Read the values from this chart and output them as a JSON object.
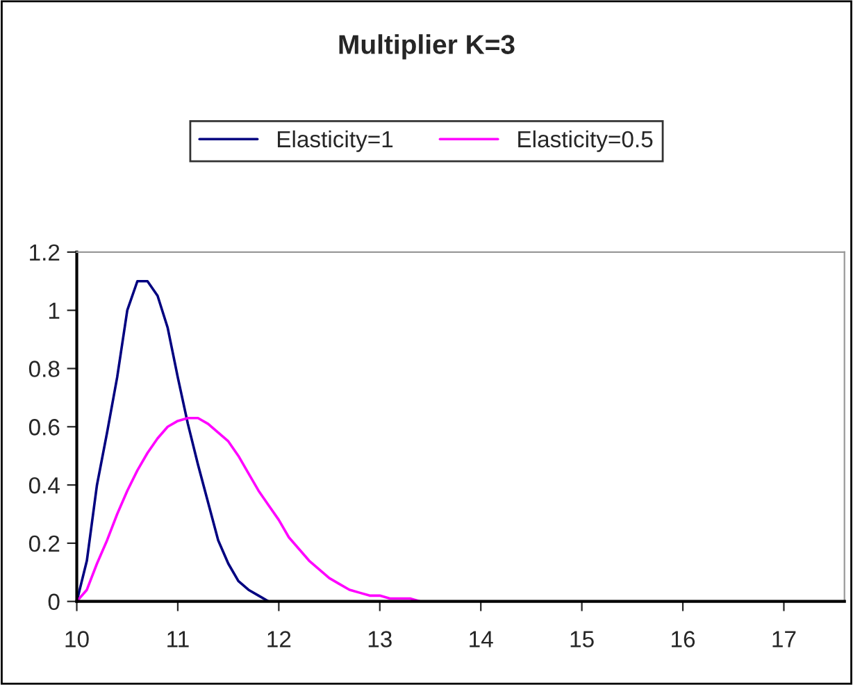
{
  "chart_data": {
    "type": "line",
    "title": "Multiplier K=3",
    "series": [
      {
        "name": "Elasticity=1",
        "color": "#000080",
        "x": [
          10,
          10.1,
          10.2,
          10.3,
          10.4,
          10.5,
          10.6,
          10.7,
          10.8,
          10.9,
          11.0,
          11.1,
          11.2,
          11.3,
          11.4,
          11.5,
          11.6,
          11.7,
          11.8,
          11.9,
          12.0,
          17.6
        ],
        "values": [
          0,
          0.14,
          0.4,
          0.58,
          0.77,
          1.0,
          1.1,
          1.1,
          1.05,
          0.94,
          0.77,
          0.61,
          0.47,
          0.34,
          0.21,
          0.13,
          0.07,
          0.04,
          0.02,
          0,
          0,
          0
        ]
      },
      {
        "name": "Elasticity=0.5",
        "color": "#ff00ff",
        "x": [
          10,
          10.1,
          10.2,
          10.3,
          10.4,
          10.5,
          10.6,
          10.7,
          10.8,
          10.9,
          11.0,
          11.1,
          11.2,
          11.3,
          11.4,
          11.5,
          11.6,
          11.7,
          11.8,
          11.9,
          12.0,
          12.1,
          12.2,
          12.3,
          12.4,
          12.5,
          12.6,
          12.7,
          12.8,
          12.9,
          13.0,
          13.1,
          13.2,
          13.3,
          13.4,
          17.6
        ],
        "values": [
          0,
          0.04,
          0.13,
          0.21,
          0.3,
          0.38,
          0.45,
          0.51,
          0.56,
          0.6,
          0.62,
          0.63,
          0.63,
          0.61,
          0.58,
          0.55,
          0.5,
          0.44,
          0.38,
          0.33,
          0.28,
          0.22,
          0.18,
          0.14,
          0.11,
          0.08,
          0.06,
          0.04,
          0.03,
          0.02,
          0.02,
          0.01,
          0.01,
          0.01,
          0,
          0
        ]
      }
    ],
    "xlim": [
      10,
      17.6
    ],
    "xticks": [
      10,
      11,
      12,
      13,
      14,
      15,
      16,
      17
    ],
    "ylim": [
      0,
      1.2
    ],
    "yticks": [
      0,
      0.2,
      0.4,
      0.6,
      0.8,
      1,
      1.2
    ],
    "legend": "top",
    "grid": false,
    "marker": "none",
    "line_style": "solid"
  }
}
